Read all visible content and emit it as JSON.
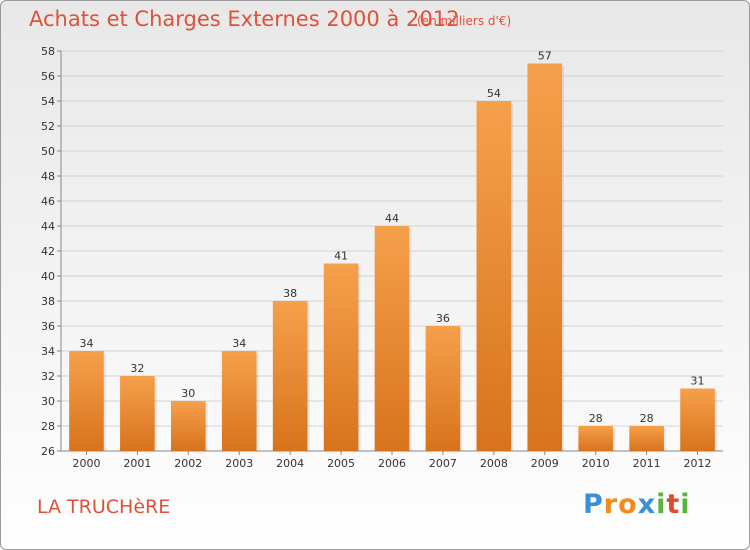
{
  "header": {
    "title": "Achats et Charges Externes 2000 à 2012",
    "subtitle": "(en milliers d'€)"
  },
  "footer": {
    "commune": "LA TRUCHèRE",
    "logo": [
      "P",
      "r",
      "o",
      "x",
      "i",
      "t",
      "i"
    ],
    "logo_colors": [
      "#3a8fd6",
      "#f08c1e",
      "#f08c1e",
      "#3a8fd6",
      "#5ab33c",
      "#e04a2e",
      "#5ab33c"
    ]
  },
  "colors": {
    "bar_light": "#f5a04b",
    "bar_dark": "#d8731c",
    "text_accent": "#e0513a"
  },
  "chart_data": {
    "type": "bar",
    "title": "Achats et Charges Externes 2000 à 2012",
    "subtitle": "(en milliers d'€)",
    "categories": [
      "2000",
      "2001",
      "2002",
      "2003",
      "2004",
      "2005",
      "2006",
      "2007",
      "2008",
      "2009",
      "2010",
      "2011",
      "2012"
    ],
    "values": [
      34,
      32,
      30,
      34,
      38,
      41,
      44,
      36,
      54,
      57,
      28,
      28,
      31
    ],
    "xlabel": "",
    "ylabel": "",
    "ylim": [
      26,
      58
    ],
    "yticks": [
      26,
      28,
      30,
      32,
      34,
      36,
      38,
      40,
      42,
      44,
      46,
      48,
      50,
      52,
      54,
      56,
      58
    ],
    "grid": true,
    "legend": "none"
  }
}
